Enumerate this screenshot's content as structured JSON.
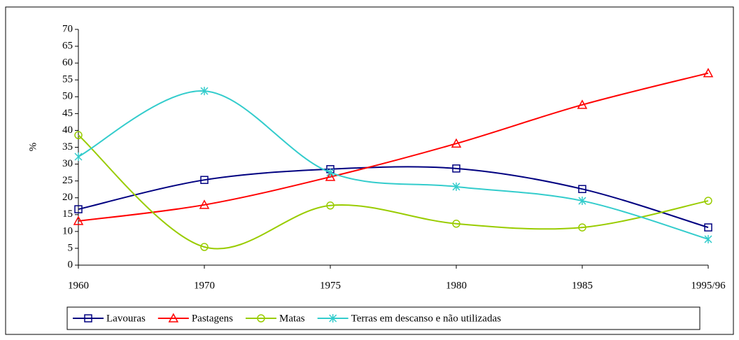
{
  "chart_data": {
    "type": "line",
    "y_label": "%",
    "categories": [
      "1960",
      "1970",
      "1975",
      "1980",
      "1985",
      "1995/96"
    ],
    "ylim": [
      0,
      70
    ],
    "yticks": [
      0,
      5,
      10,
      15,
      20,
      25,
      30,
      35,
      40,
      45,
      50,
      55,
      60,
      65,
      70
    ],
    "smooth": true,
    "legend": "bottom",
    "series": [
      {
        "name": "Lavouras",
        "color": "#000080",
        "marker": "square",
        "values": [
          16.6,
          25.3,
          28.5,
          28.7,
          22.6,
          11.2
        ]
      },
      {
        "name": "Pastagens",
        "color": "#ff0000",
        "marker": "triangle",
        "values": [
          13.1,
          17.9,
          26.2,
          36.1,
          47.6,
          57
        ]
      },
      {
        "name": "Matas",
        "color": "#99cc00",
        "marker": "circle",
        "values": [
          38.6,
          5.4,
          17.7,
          12.3,
          11.2,
          19.1
        ]
      },
      {
        "name": "Terras em descanso e não utilizadas",
        "color": "#33cccc",
        "marker": "star",
        "values": [
          32.2,
          51.7,
          27.5,
          23.3,
          19.1,
          7.7
        ]
      }
    ]
  }
}
